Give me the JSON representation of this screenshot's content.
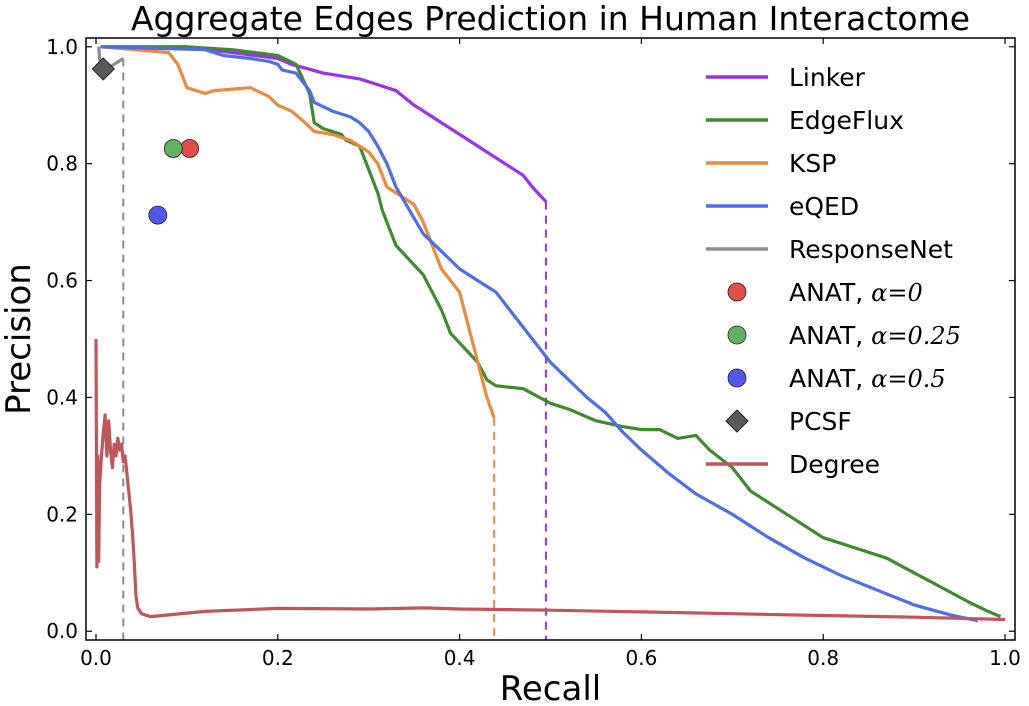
{
  "chart_data": {
    "type": "line",
    "title": "Aggregate Edges Prediction in Human Interactome",
    "xlabel": "Recall",
    "ylabel": "Precision",
    "xlim": [
      0.0,
      1.0
    ],
    "ylim": [
      0.0,
      1.0
    ],
    "xticks": [
      "0.0",
      "0.2",
      "0.4",
      "0.6",
      "0.8",
      "1.0"
    ],
    "yticks": [
      "0.0",
      "0.2",
      "0.4",
      "0.6",
      "0.8",
      "1.0"
    ],
    "grid": false,
    "legend_position": "upper-right",
    "series": [
      {
        "name": "Linker",
        "color": "#9932f0",
        "x": [
          0.005,
          0.1,
          0.2,
          0.215,
          0.25,
          0.29,
          0.33,
          0.35,
          0.37,
          0.4,
          0.43,
          0.45,
          0.47,
          0.48,
          0.495
        ],
        "y": [
          1.0,
          1.0,
          0.98,
          0.97,
          0.955,
          0.945,
          0.925,
          0.9,
          0.88,
          0.85,
          0.82,
          0.8,
          0.78,
          0.76,
          0.735
        ],
        "drop_to_zero_at_x": 0.495
      },
      {
        "name": "EdgeFlux",
        "color": "#3f8a2e",
        "x": [
          0.005,
          0.1,
          0.15,
          0.2,
          0.22,
          0.235,
          0.24,
          0.25,
          0.27,
          0.275,
          0.29,
          0.3,
          0.31,
          0.315,
          0.33,
          0.36,
          0.38,
          0.39,
          0.42,
          0.43,
          0.44,
          0.47,
          0.5,
          0.52,
          0.55,
          0.58,
          0.6,
          0.62,
          0.64,
          0.66,
          0.675,
          0.7,
          0.72,
          0.76,
          0.8,
          0.84,
          0.87,
          0.9,
          0.93,
          0.96,
          0.98,
          0.995
        ],
        "y": [
          1.0,
          1.0,
          0.995,
          0.985,
          0.97,
          0.92,
          0.87,
          0.86,
          0.85,
          0.84,
          0.83,
          0.79,
          0.75,
          0.72,
          0.66,
          0.61,
          0.55,
          0.51,
          0.46,
          0.43,
          0.42,
          0.415,
          0.39,
          0.38,
          0.36,
          0.35,
          0.345,
          0.345,
          0.33,
          0.335,
          0.31,
          0.28,
          0.24,
          0.2,
          0.16,
          0.14,
          0.125,
          0.1,
          0.075,
          0.05,
          0.035,
          0.025
        ]
      },
      {
        "name": "KSP",
        "color": "#ea8a3a",
        "x": [
          0.005,
          0.08,
          0.09,
          0.095,
          0.1,
          0.12,
          0.13,
          0.17,
          0.19,
          0.2,
          0.215,
          0.23,
          0.24,
          0.26,
          0.28,
          0.3,
          0.31,
          0.32,
          0.34,
          0.35,
          0.36,
          0.37,
          0.38,
          0.4,
          0.41,
          0.42,
          0.43,
          0.438
        ],
        "y": [
          1.0,
          0.99,
          0.97,
          0.95,
          0.93,
          0.92,
          0.925,
          0.93,
          0.915,
          0.9,
          0.89,
          0.87,
          0.855,
          0.85,
          0.84,
          0.82,
          0.8,
          0.76,
          0.74,
          0.73,
          0.7,
          0.66,
          0.62,
          0.58,
          0.52,
          0.46,
          0.4,
          0.365
        ],
        "drop_to_zero_at_x": 0.438
      },
      {
        "name": "eQED",
        "color": "#4f6ee6",
        "x": [
          0.005,
          0.12,
          0.14,
          0.17,
          0.19,
          0.2,
          0.205,
          0.22,
          0.235,
          0.24,
          0.26,
          0.28,
          0.29,
          0.3,
          0.31,
          0.32,
          0.33,
          0.345,
          0.36,
          0.38,
          0.4,
          0.42,
          0.44,
          0.46,
          0.48,
          0.5,
          0.52,
          0.54,
          0.56,
          0.58,
          0.6,
          0.63,
          0.66,
          0.7,
          0.74,
          0.78,
          0.82,
          0.86,
          0.9,
          0.94,
          0.97
        ],
        "y": [
          1.0,
          0.995,
          0.985,
          0.98,
          0.975,
          0.97,
          0.96,
          0.955,
          0.925,
          0.905,
          0.89,
          0.88,
          0.87,
          0.855,
          0.83,
          0.8,
          0.76,
          0.72,
          0.68,
          0.65,
          0.62,
          0.6,
          0.58,
          0.54,
          0.5,
          0.46,
          0.43,
          0.4,
          0.375,
          0.34,
          0.31,
          0.27,
          0.235,
          0.2,
          0.16,
          0.125,
          0.095,
          0.07,
          0.045,
          0.028,
          0.018
        ]
      },
      {
        "name": "ResponseNet",
        "color": "#8c8c8c",
        "x": [
          0.003,
          0.004,
          0.006,
          0.01,
          0.015,
          0.02,
          0.025,
          0.03
        ],
        "y": [
          1.0,
          0.98,
          0.96,
          0.96,
          0.965,
          0.97,
          0.975,
          0.98
        ],
        "drop_to_zero_at_x": 0.03
      },
      {
        "name": "Degree",
        "color": "#c0555c",
        "x": [
          0.0,
          0.001,
          0.002,
          0.003,
          0.004,
          0.006,
          0.008,
          0.01,
          0.012,
          0.014,
          0.016,
          0.018,
          0.02,
          0.022,
          0.024,
          0.026,
          0.028,
          0.03,
          0.032,
          0.034,
          0.036,
          0.038,
          0.04,
          0.042,
          0.044,
          0.046,
          0.05,
          0.06,
          0.08,
          0.12,
          0.2,
          0.3,
          0.36,
          0.4,
          0.5,
          0.6,
          0.7,
          0.8,
          0.9,
          1.0
        ],
        "y": [
          0.5,
          0.11,
          0.3,
          0.12,
          0.25,
          0.3,
          0.34,
          0.37,
          0.3,
          0.36,
          0.31,
          0.28,
          0.32,
          0.3,
          0.33,
          0.31,
          0.32,
          0.29,
          0.3,
          0.27,
          0.24,
          0.21,
          0.17,
          0.12,
          0.06,
          0.04,
          0.03,
          0.025,
          0.028,
          0.034,
          0.039,
          0.038,
          0.04,
          0.038,
          0.036,
          0.033,
          0.03,
          0.027,
          0.024,
          0.02
        ]
      }
    ],
    "points": [
      {
        "name": "ANAT, α=0",
        "label_prefix": "ANAT, ",
        "label_math": "α=0",
        "color": "#e14c4c",
        "marker": "circle",
        "x": 0.103,
        "y": 0.826
      },
      {
        "name": "ANAT, α=0.25",
        "label_prefix": "ANAT, ",
        "label_math": "α=0.25",
        "color": "#62b361",
        "marker": "circle",
        "x": 0.085,
        "y": 0.826
      },
      {
        "name": "ANAT, α=0.5",
        "label_prefix": "ANAT, ",
        "label_math": "α=0.5",
        "color": "#5457ee",
        "marker": "circle",
        "x": 0.068,
        "y": 0.712
      },
      {
        "name": "PCSF",
        "label_prefix": "PCSF",
        "label_math": "",
        "color": "#5a5a5a",
        "marker": "diamond",
        "x": 0.008,
        "y": 0.962
      }
    ],
    "legend_order": [
      "Linker",
      "EdgeFlux",
      "KSP",
      "eQED",
      "ResponseNet",
      "ANAT, α=0",
      "ANAT, α=0.25",
      "ANAT, α=0.5",
      "PCSF",
      "Degree"
    ]
  }
}
